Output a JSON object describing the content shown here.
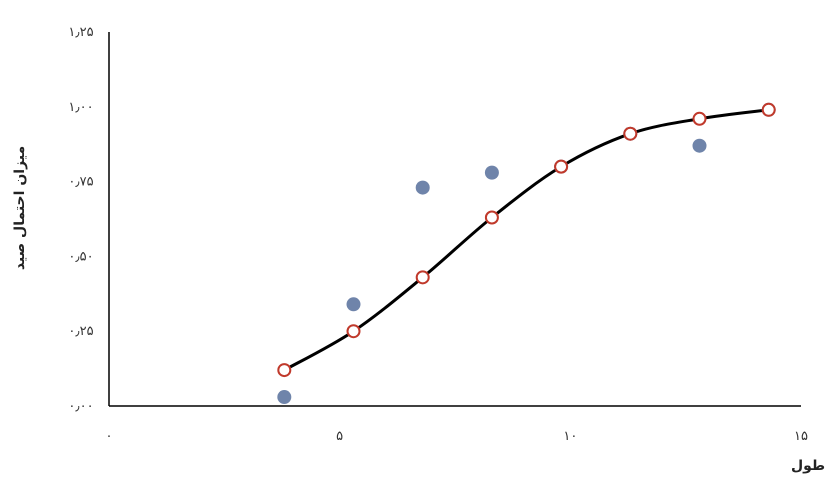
{
  "chart_data": {
    "type": "scatter",
    "xlabel": "طول",
    "ylabel": "میزان احتمال صید",
    "xlim": [
      0,
      15
    ],
    "ylim": [
      0,
      1.25
    ],
    "x_ticks": [
      0,
      5,
      10,
      15
    ],
    "x_tick_labels": [
      "۰",
      "۵",
      "۱۰",
      "۱۵"
    ],
    "y_ticks": [
      0,
      0.25,
      0.5,
      0.75,
      1.0,
      1.25
    ],
    "y_tick_labels": [
      "۰٫۰۰",
      "۰٫۲۵",
      "۰٫۵۰",
      "۰٫۷۵",
      "۱٫۰۰",
      "۱٫۲۵"
    ],
    "grid": false,
    "series": [
      {
        "kind": "observed-points",
        "color": "#6f84aa",
        "x": [
          3.8,
          5.3,
          6.8,
          8.3,
          9.8,
          11.3,
          12.8,
          14.3
        ],
        "y": [
          0.03,
          0.34,
          0.73,
          0.78,
          0.8,
          0.91,
          0.87,
          0.99
        ]
      },
      {
        "kind": "fitted-curve-points",
        "color": "#000000",
        "marker_edge": "#c0392b",
        "x": [
          3.8,
          5.3,
          6.8,
          8.3,
          9.8,
          11.3,
          12.8,
          14.3
        ],
        "y": [
          0.12,
          0.25,
          0.43,
          0.63,
          0.8,
          0.91,
          0.96,
          0.99
        ]
      }
    ]
  }
}
